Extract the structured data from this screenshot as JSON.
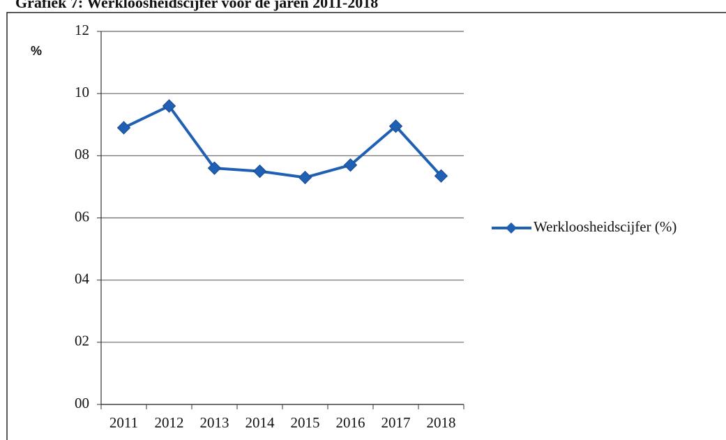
{
  "chart_data": {
    "type": "line",
    "title": "Grafiek 7: Werkloosheidscijfer voor de jaren 2011-2018",
    "y_label": "%",
    "categories": [
      "2011",
      "2012",
      "2013",
      "2014",
      "2015",
      "2016",
      "2017",
      "2018"
    ],
    "series": [
      {
        "name": "Werkloosheidscijfer (%)",
        "color": "#1f5fb4",
        "values": [
          8.9,
          9.6,
          7.6,
          7.5,
          7.3,
          7.7,
          8.95,
          7.35
        ]
      }
    ],
    "ylim": [
      0,
      12
    ],
    "yticks": [
      {
        "value": 0,
        "label": "00"
      },
      {
        "value": 2,
        "label": "02"
      },
      {
        "value": 4,
        "label": "04"
      },
      {
        "value": 6,
        "label": "06"
      },
      {
        "value": 8,
        "label": "08"
      },
      10,
      12
    ],
    "grid": true,
    "legend": "right"
  }
}
